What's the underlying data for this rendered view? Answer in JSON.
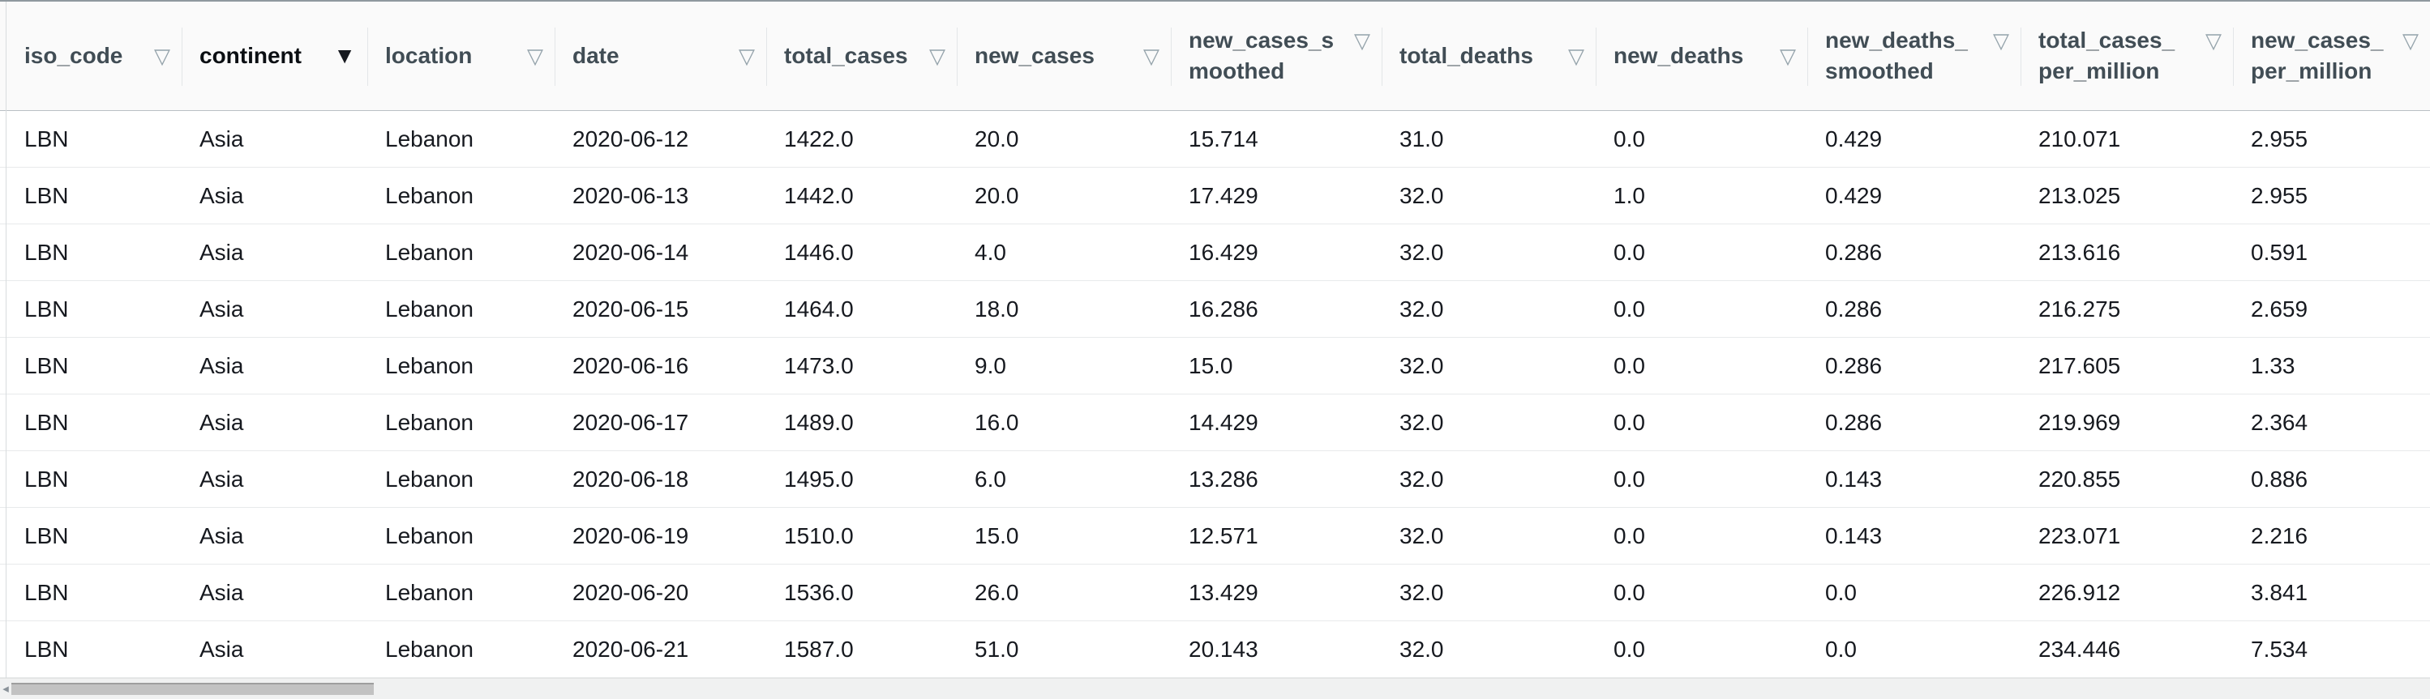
{
  "table": {
    "filter_icon": {
      "inactive_glyph": "▽",
      "active_glyph": "▼"
    },
    "columns": [
      {
        "id": "iso_code",
        "label": "iso_code",
        "filter_active": false,
        "two_line": false
      },
      {
        "id": "continent",
        "label": "continent",
        "filter_active": true,
        "two_line": false
      },
      {
        "id": "location",
        "label": "location",
        "filter_active": false,
        "two_line": false
      },
      {
        "id": "date",
        "label": "date",
        "filter_active": false,
        "two_line": false
      },
      {
        "id": "total_cases",
        "label": "total_cases",
        "filter_active": false,
        "two_line": false
      },
      {
        "id": "new_cases",
        "label": "new_cases",
        "filter_active": false,
        "two_line": false
      },
      {
        "id": "new_cases_smoothed",
        "label": "new_cases_smoothed",
        "filter_active": false,
        "two_line": true
      },
      {
        "id": "total_deaths",
        "label": "total_deaths",
        "filter_active": false,
        "two_line": false
      },
      {
        "id": "new_deaths",
        "label": "new_deaths",
        "filter_active": false,
        "two_line": false
      },
      {
        "id": "new_deaths_smoothed",
        "label": "new_deaths_smoothed",
        "filter_active": false,
        "two_line": true
      },
      {
        "id": "total_cases_per_million",
        "label": "total_cases_per_million",
        "filter_active": false,
        "two_line": true
      },
      {
        "id": "new_cases_per_million",
        "label": "new_cases_per_million",
        "filter_active": false,
        "two_line": true
      }
    ],
    "rows": [
      [
        "LBN",
        "Asia",
        "Lebanon",
        "2020-06-12",
        "1422.0",
        "20.0",
        "15.714",
        "31.0",
        "0.0",
        "0.429",
        "210.071",
        "2.955"
      ],
      [
        "LBN",
        "Asia",
        "Lebanon",
        "2020-06-13",
        "1442.0",
        "20.0",
        "17.429",
        "32.0",
        "1.0",
        "0.429",
        "213.025",
        "2.955"
      ],
      [
        "LBN",
        "Asia",
        "Lebanon",
        "2020-06-14",
        "1446.0",
        "4.0",
        "16.429",
        "32.0",
        "0.0",
        "0.286",
        "213.616",
        "0.591"
      ],
      [
        "LBN",
        "Asia",
        "Lebanon",
        "2020-06-15",
        "1464.0",
        "18.0",
        "16.286",
        "32.0",
        "0.0",
        "0.286",
        "216.275",
        "2.659"
      ],
      [
        "LBN",
        "Asia",
        "Lebanon",
        "2020-06-16",
        "1473.0",
        "9.0",
        "15.0",
        "32.0",
        "0.0",
        "0.286",
        "217.605",
        "1.33"
      ],
      [
        "LBN",
        "Asia",
        "Lebanon",
        "2020-06-17",
        "1489.0",
        "16.0",
        "14.429",
        "32.0",
        "0.0",
        "0.286",
        "219.969",
        "2.364"
      ],
      [
        "LBN",
        "Asia",
        "Lebanon",
        "2020-06-18",
        "1495.0",
        "6.0",
        "13.286",
        "32.0",
        "0.0",
        "0.143",
        "220.855",
        "0.886"
      ],
      [
        "LBN",
        "Asia",
        "Lebanon",
        "2020-06-19",
        "1510.0",
        "15.0",
        "12.571",
        "32.0",
        "0.0",
        "0.143",
        "223.071",
        "2.216"
      ],
      [
        "LBN",
        "Asia",
        "Lebanon",
        "2020-06-20",
        "1536.0",
        "26.0",
        "13.429",
        "32.0",
        "0.0",
        "0.0",
        "226.912",
        "3.841"
      ],
      [
        "LBN",
        "Asia",
        "Lebanon",
        "2020-06-21",
        "1587.0",
        "51.0",
        "20.143",
        "32.0",
        "0.0",
        "0.0",
        "234.446",
        "7.534"
      ]
    ]
  },
  "colors": {
    "header_bg": "#fafafa",
    "header_text": "#414d55",
    "active_header_text": "#0b0f13",
    "filter_icon": "#95a3ab",
    "active_filter_icon": "#16191f",
    "row_text": "#16191f",
    "row_separator": "#e8eaeb",
    "header_border": "#b9c0c5",
    "top_border": "#8f999f",
    "scroll_track": "#f0f1f1",
    "scroll_thumb": "#c2c2c2"
  }
}
